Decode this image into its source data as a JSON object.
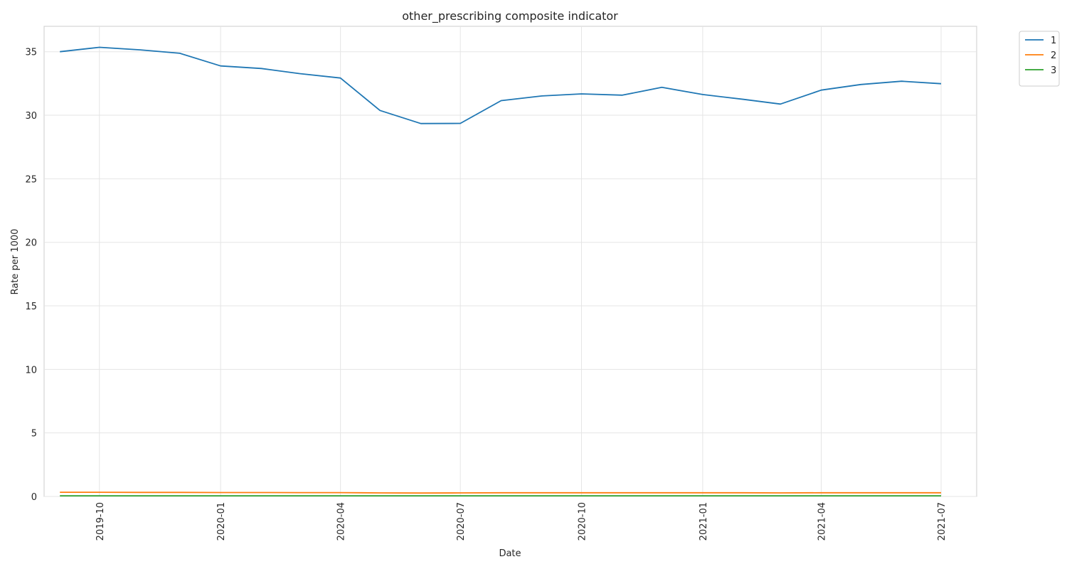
{
  "chart_data": {
    "type": "line",
    "title": "other_prescribing composite indicator",
    "xlabel": "Date",
    "ylabel": "Rate per 1000",
    "x": [
      "2019-09-01",
      "2019-10-01",
      "2019-11-01",
      "2019-12-01",
      "2020-01-01",
      "2020-02-01",
      "2020-03-01",
      "2020-04-01",
      "2020-05-01",
      "2020-06-01",
      "2020-07-01",
      "2020-08-01",
      "2020-09-01",
      "2020-10-01",
      "2020-11-01",
      "2020-12-01",
      "2021-01-01",
      "2021-02-01",
      "2021-03-01",
      "2021-04-01",
      "2021-05-01",
      "2021-06-01",
      "2021-07-01"
    ],
    "x_ticks": [
      "2019-10",
      "2020-01",
      "2020-04",
      "2020-07",
      "2020-10",
      "2021-01",
      "2021-04",
      "2021-07"
    ],
    "y_ticks": [
      0,
      5,
      10,
      15,
      20,
      25,
      30,
      35
    ],
    "ylim": [
      0,
      37
    ],
    "xlim": [
      "2019-08-20",
      "2021-07-28"
    ],
    "grid": true,
    "legend_position": "top-right outside",
    "series": [
      {
        "name": "1",
        "color": "#1f77b4",
        "values": [
          35.0,
          35.35,
          35.15,
          34.88,
          33.88,
          33.68,
          33.28,
          32.93,
          30.38,
          29.35,
          29.36,
          31.15,
          31.52,
          31.68,
          31.58,
          32.2,
          31.63,
          31.25,
          30.88,
          31.98,
          32.42,
          32.68,
          32.48
        ]
      },
      {
        "name": "2",
        "color": "#ff7f0e",
        "values": [
          0.33,
          0.33,
          0.32,
          0.32,
          0.31,
          0.31,
          0.3,
          0.3,
          0.28,
          0.27,
          0.28,
          0.29,
          0.29,
          0.29,
          0.29,
          0.29,
          0.29,
          0.29,
          0.28,
          0.29,
          0.29,
          0.29,
          0.29
        ]
      },
      {
        "name": "3",
        "color": "#2ca02c",
        "values": [
          0.05,
          0.05,
          0.05,
          0.05,
          0.05,
          0.05,
          0.05,
          0.05,
          0.05,
          0.05,
          0.05,
          0.05,
          0.05,
          0.05,
          0.05,
          0.05,
          0.05,
          0.05,
          0.05,
          0.05,
          0.05,
          0.05,
          0.05
        ]
      }
    ]
  }
}
